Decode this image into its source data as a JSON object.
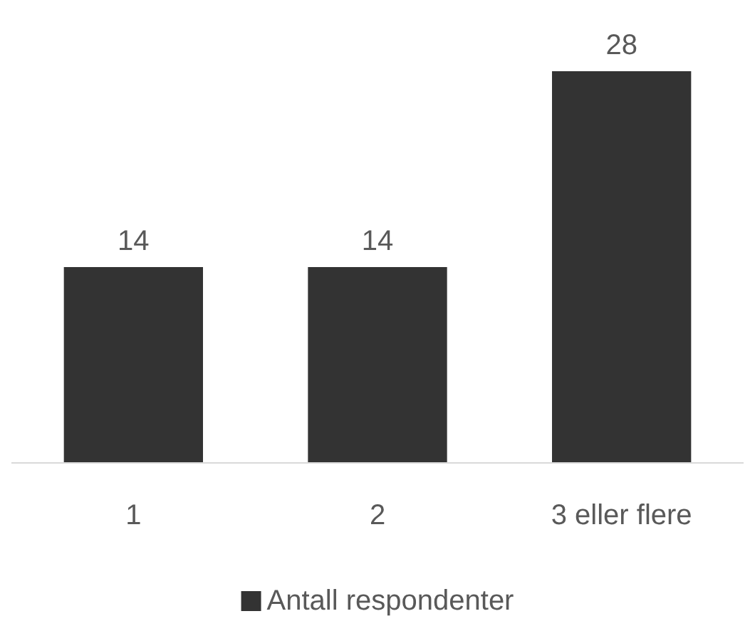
{
  "chart_data": {
    "type": "bar",
    "categories": [
      "1",
      "2",
      "3 eller flere"
    ],
    "series": [
      {
        "name": "Antall respondenter",
        "color": "#333333",
        "values": [
          14,
          14,
          28
        ]
      }
    ],
    "data_labels": true,
    "legend": "bottom"
  }
}
